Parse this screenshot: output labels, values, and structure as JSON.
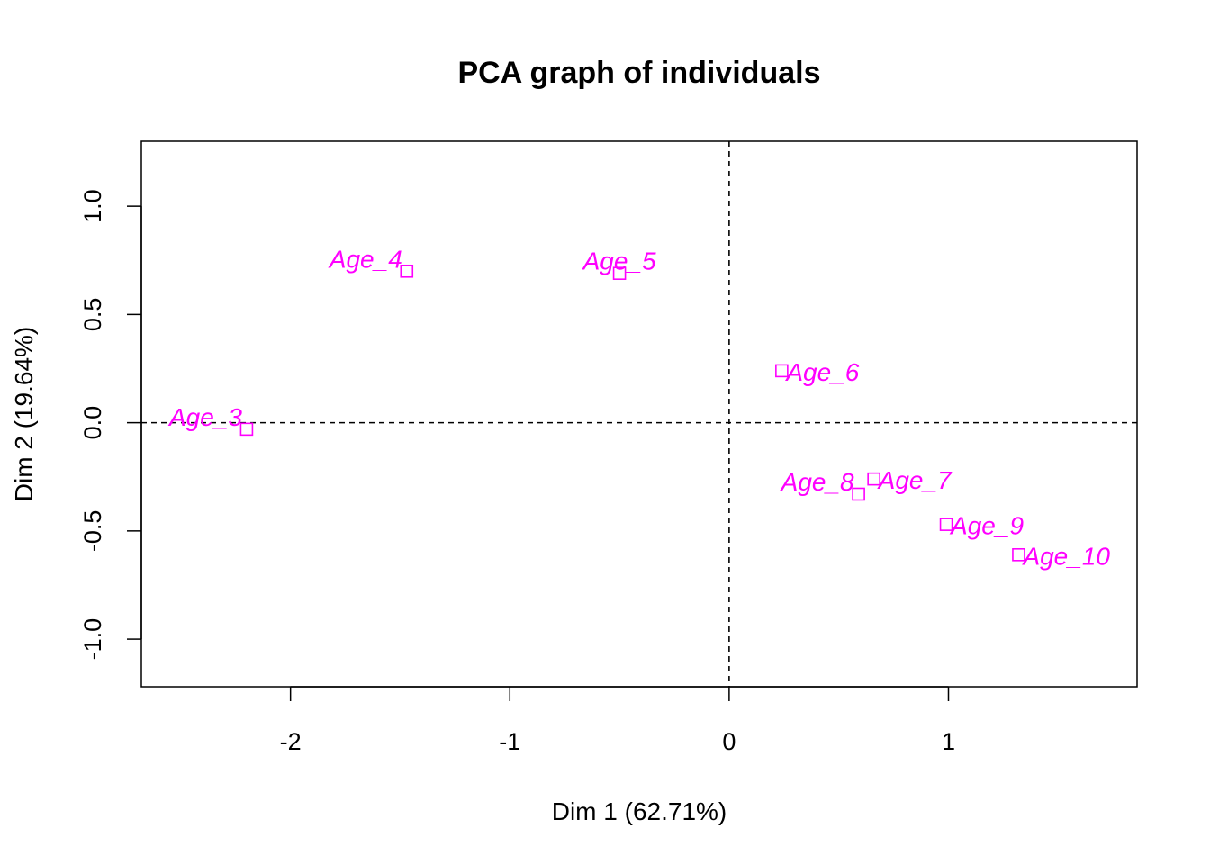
{
  "chart_data": {
    "type": "scatter",
    "title": "PCA graph of individuals",
    "xlabel": "Dim 1 (62.71%)",
    "ylabel": "Dim 2 (19.64%)",
    "xlim": [
      -2.68,
      1.86
    ],
    "ylim": [
      -1.22,
      1.3
    ],
    "xticks": [
      -2,
      -1,
      0,
      1
    ],
    "xtick_labels": [
      "-2",
      "-1",
      "0",
      "1"
    ],
    "yticks": [
      -1.0,
      -0.5,
      0.0,
      0.5,
      1.0
    ],
    "ytick_labels": [
      "-1.0",
      "-0.5",
      "0.0",
      "0.5",
      "1.0"
    ],
    "reference_lines": {
      "x": 0,
      "y": 0,
      "style": "dashed"
    },
    "point_color": "#FF00FF",
    "marker": "open-square",
    "points": [
      {
        "label": "Age_3",
        "x": -2.2,
        "y": -0.03,
        "label_pos": "left"
      },
      {
        "label": "Age_4",
        "x": -1.47,
        "y": 0.7,
        "label_pos": "left"
      },
      {
        "label": "Age_5",
        "x": -0.5,
        "y": 0.69,
        "label_pos": "center"
      },
      {
        "label": "Age_6",
        "x": 0.24,
        "y": 0.24,
        "label_pos": "right"
      },
      {
        "label": "Age_7",
        "x": 0.66,
        "y": -0.26,
        "label_pos": "right"
      },
      {
        "label": "Age_8",
        "x": 0.59,
        "y": -0.33,
        "label_pos": "left"
      },
      {
        "label": "Age_9",
        "x": 0.99,
        "y": -0.47,
        "label_pos": "right"
      },
      {
        "label": "Age_10",
        "x": 1.32,
        "y": -0.61,
        "label_pos": "right"
      }
    ]
  }
}
